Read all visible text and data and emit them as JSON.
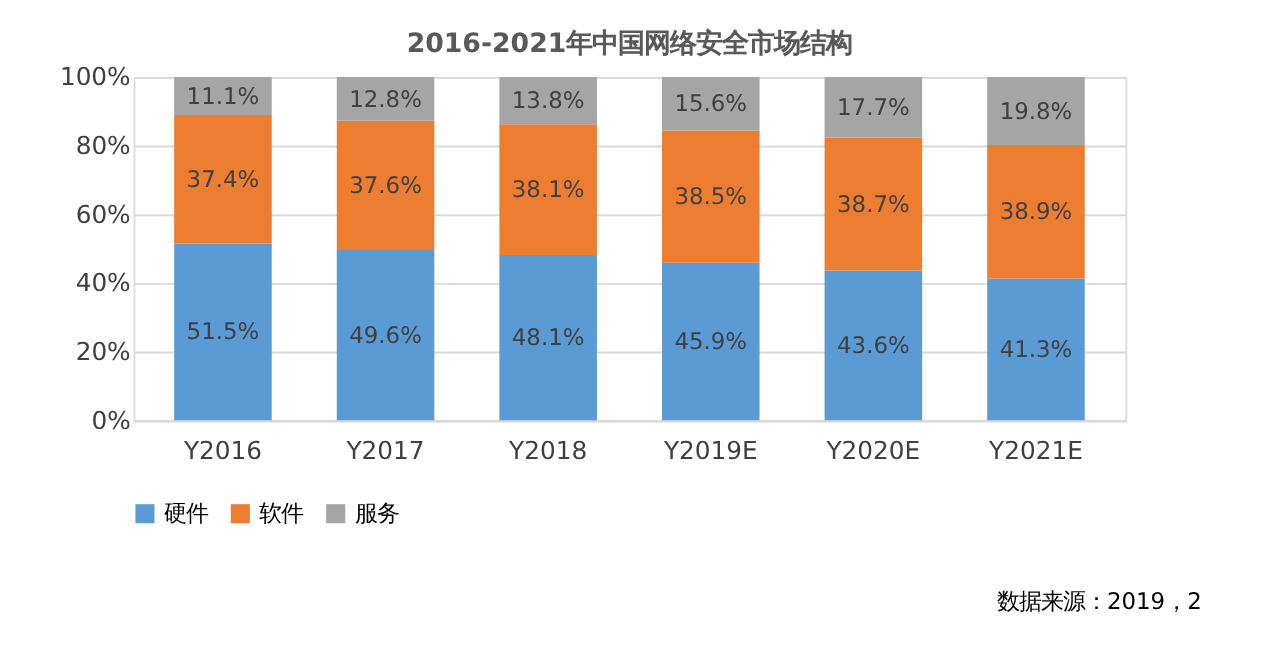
{
  "chart_data": {
    "type": "bar",
    "title": "2016-2021年中国网络安全市场结构",
    "categories": [
      "Y2016",
      "Y2017",
      "Y2018",
      "Y2019E",
      "Y2020E",
      "Y2021E"
    ],
    "series": [
      {
        "name": "硬件",
        "color": "#5b9bd5",
        "values": [
          51.5,
          49.6,
          48.1,
          45.9,
          43.6,
          41.3
        ]
      },
      {
        "name": "软件",
        "color": "#ed7d31",
        "values": [
          37.4,
          37.6,
          38.1,
          38.5,
          38.7,
          38.9
        ]
      },
      {
        "name": "服务",
        "color": "#a5a5a5",
        "values": [
          11.1,
          12.8,
          13.8,
          15.6,
          17.7,
          19.8
        ]
      }
    ],
    "stacked": true,
    "value_labels": [
      [
        "51.5%",
        "49.6%",
        "48.1%",
        "45.9%",
        "43.6%",
        "41.3%"
      ],
      [
        "37.4%",
        "37.6%",
        "38.1%",
        "38.5%",
        "38.7%",
        "38.9%"
      ],
      [
        "11.1%",
        "12.8%",
        "13.8%",
        "15.6%",
        "17.7%",
        "19.8%"
      ]
    ],
    "ylim": [
      0,
      100
    ],
    "yticks": [
      {
        "value": 0,
        "label": "0%"
      },
      {
        "value": 20,
        "label": "20%"
      },
      {
        "value": 40,
        "label": "40%"
      },
      {
        "value": 60,
        "label": "60%"
      },
      {
        "value": 80,
        "label": "80%"
      },
      {
        "value": 100,
        "label": "100%"
      }
    ],
    "grid": "y",
    "legend": "bottom",
    "annotations": [
      "数据来源：2019，2"
    ]
  }
}
